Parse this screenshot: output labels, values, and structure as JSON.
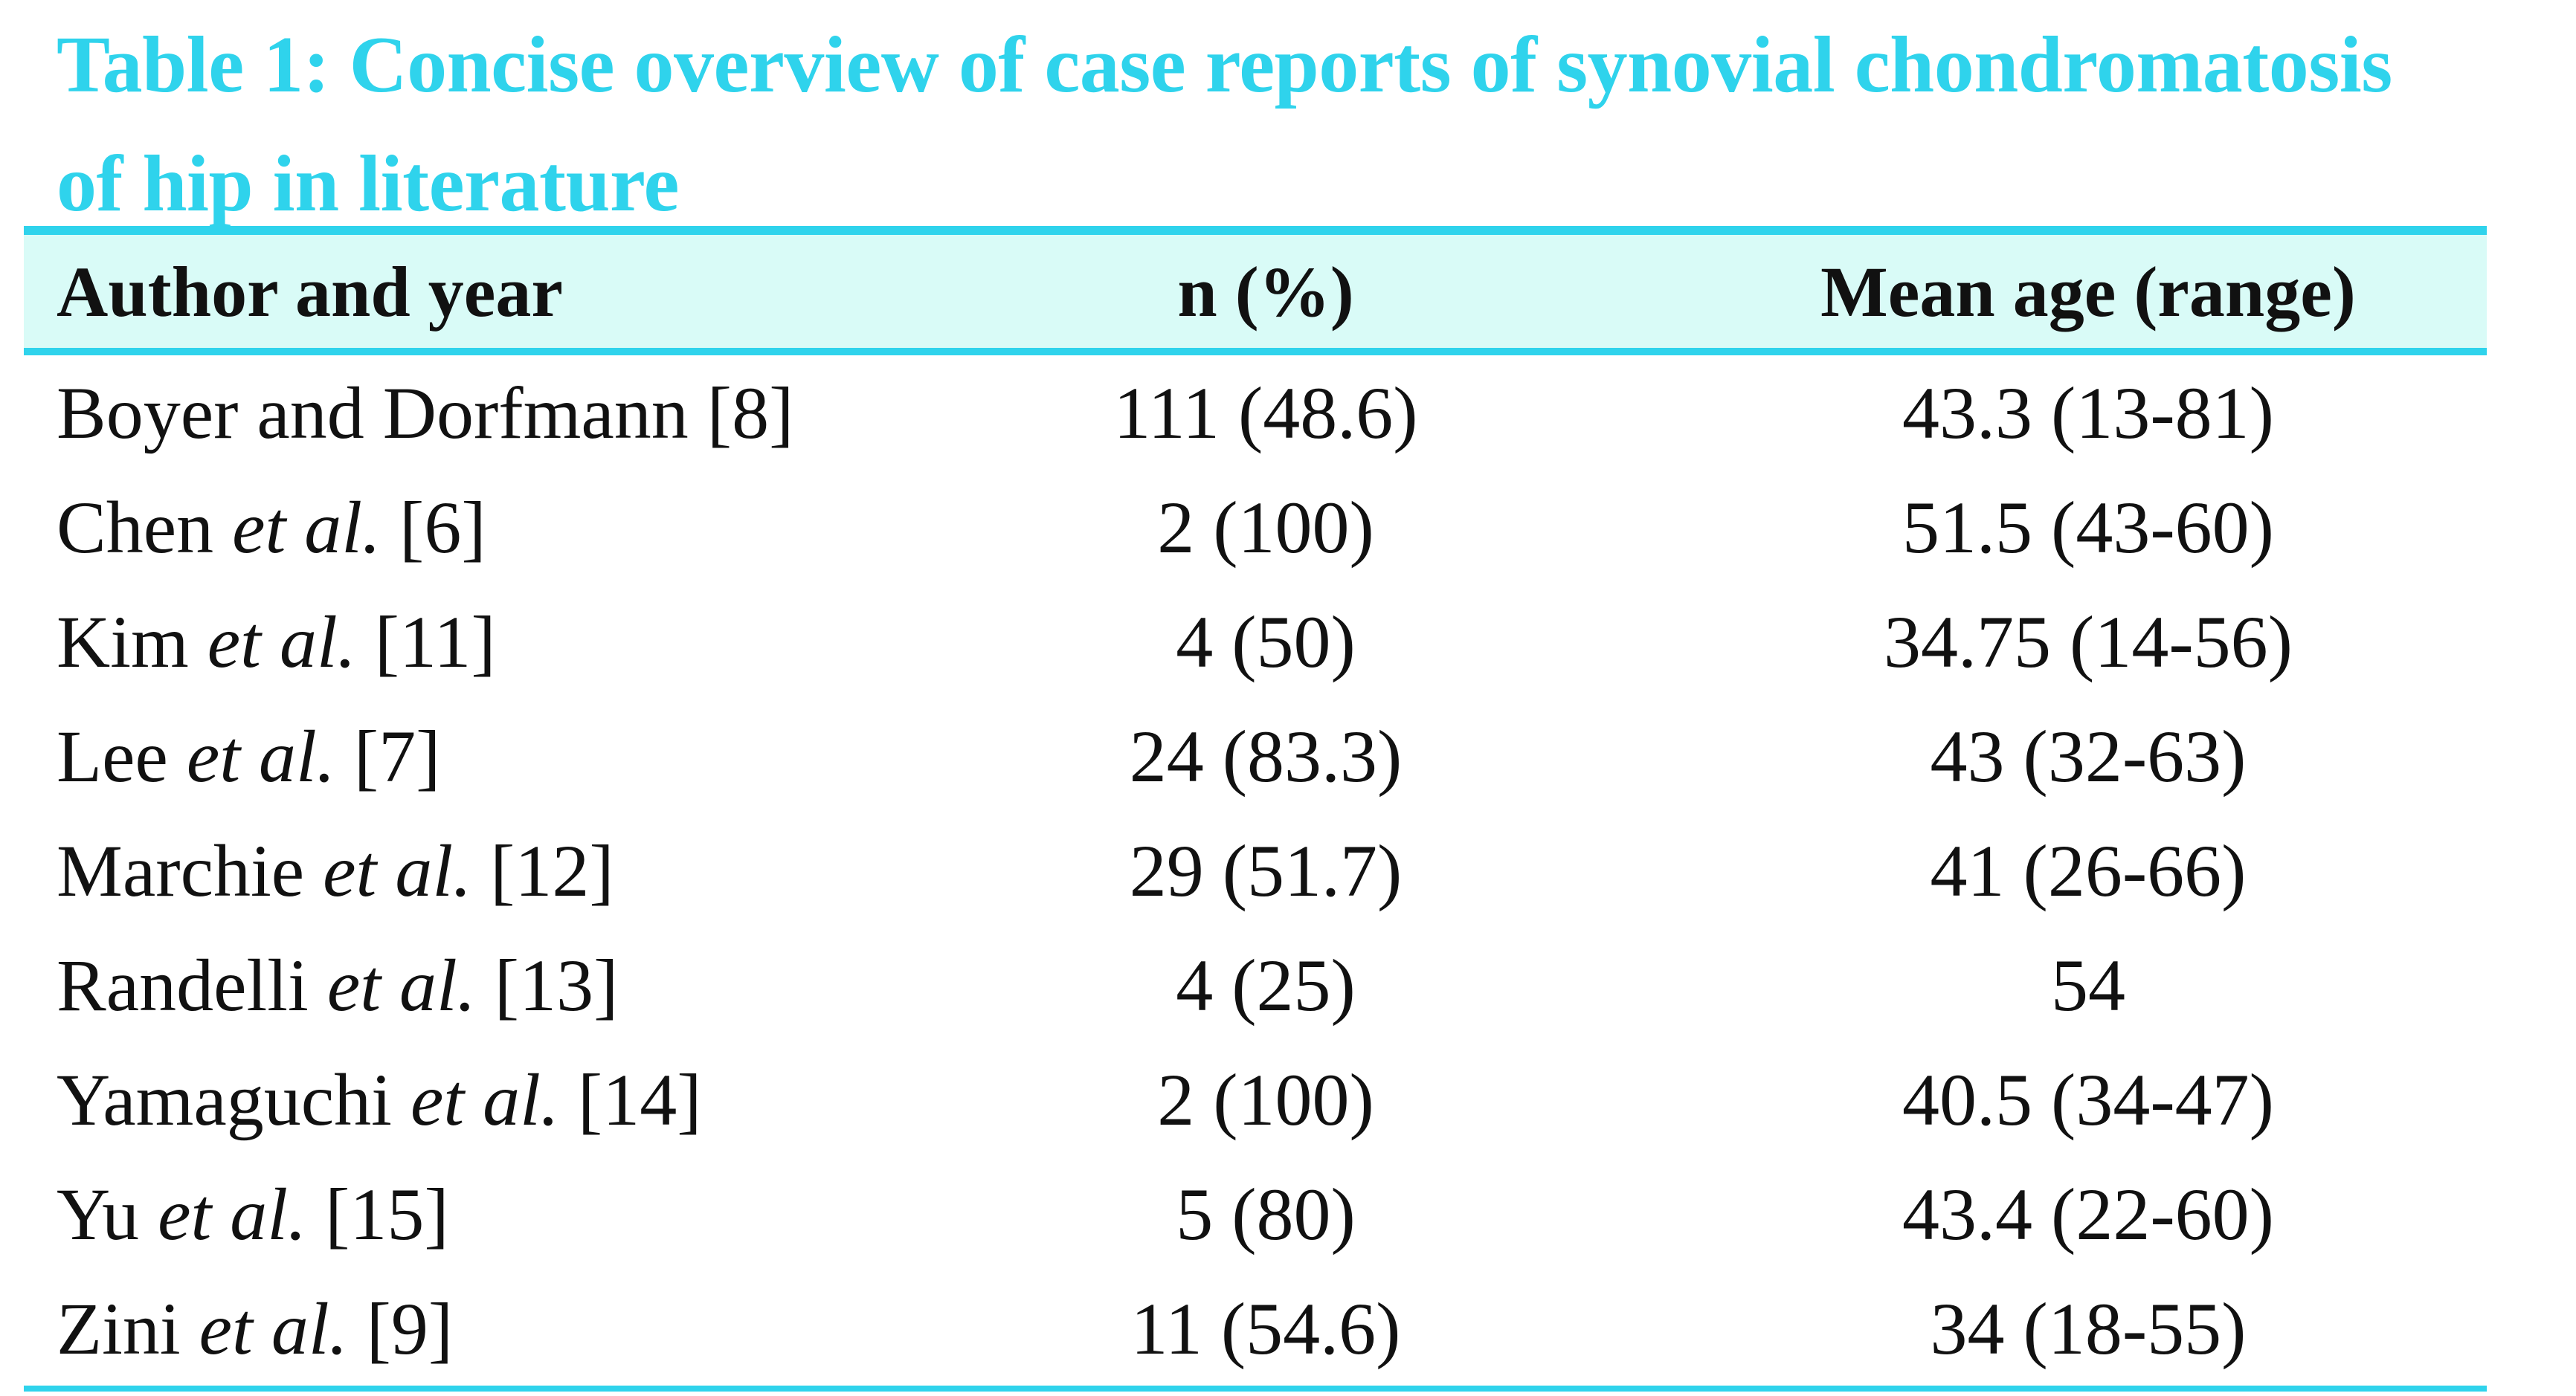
{
  "title": "Table 1: Concise overview of case reports of synovial chondromatosis of hip in literature",
  "columns": {
    "author": "Author and year",
    "n": "n (%)",
    "age": "Mean age (range)"
  },
  "rows": [
    {
      "name": "Boyer and Dorfmann",
      "etal": "",
      "ref": "[8]",
      "n": "111 (48.6)",
      "age": "43.3 (13-81)"
    },
    {
      "name": "Chen",
      "etal": "et al.",
      "ref": "[6]",
      "n": "2 (100)",
      "age": "51.5 (43-60)"
    },
    {
      "name": "Kim",
      "etal": "et al.",
      "ref": "[11]",
      "n": "4 (50)",
      "age": "34.75 (14-56)"
    },
    {
      "name": "Lee",
      "etal": "et al.",
      "ref": "[7]",
      "n": "24 (83.3)",
      "age": "43 (32-63)"
    },
    {
      "name": "Marchie",
      "etal": "et al.",
      "ref": "[12]",
      "n": "29 (51.7)",
      "age": "41 (26-66)"
    },
    {
      "name": "Randelli",
      "etal": "et al.",
      "ref": "[13]",
      "n": "4 (25)",
      "age": "54"
    },
    {
      "name": "Yamaguchi",
      "etal": "et al.",
      "ref": "[14]",
      "n": "2 (100)",
      "age": "40.5 (34-47)"
    },
    {
      "name": "Yu",
      "etal": "et al.",
      "ref": "[15]",
      "n": "5 (80)",
      "age": "43.4 (22-60)"
    },
    {
      "name": "Zini",
      "etal": "et al.",
      "ref": "[9]",
      "n": "11 (54.6)",
      "age": "34 (18-55)"
    }
  ],
  "colors": {
    "accent": "#2fd3ec",
    "header_bg": "#d9fbf7",
    "text": "#111111"
  }
}
